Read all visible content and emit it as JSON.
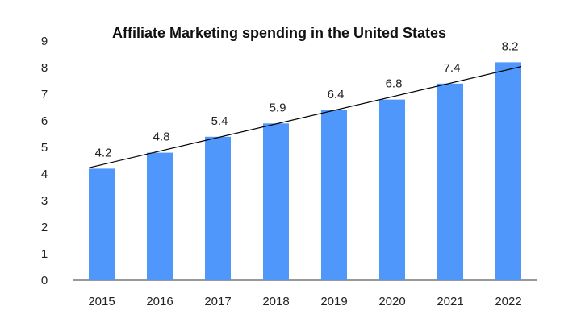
{
  "chart_data": {
    "type": "bar",
    "title": "Affiliate Marketing spending in the United States",
    "xlabel": "",
    "ylabel": "",
    "categories": [
      "2015",
      "2016",
      "2017",
      "2018",
      "2019",
      "2020",
      "2021",
      "2022"
    ],
    "values": [
      4.2,
      4.8,
      5.4,
      5.9,
      6.4,
      6.8,
      7.4,
      8.2
    ],
    "data_labels": [
      "4.2",
      "4.8",
      "5.4",
      "5.9",
      "6.4",
      "6.8",
      "7.4",
      "8.2"
    ],
    "ylim": [
      0,
      9
    ],
    "yticks": [
      "0",
      "1",
      "2",
      "3",
      "4",
      "5",
      "6",
      "7",
      "8",
      "9"
    ],
    "trendline": {
      "type": "linear",
      "color": "#000000"
    },
    "grid": false,
    "legend": "none",
    "bar_color": "#4f97fa"
  }
}
